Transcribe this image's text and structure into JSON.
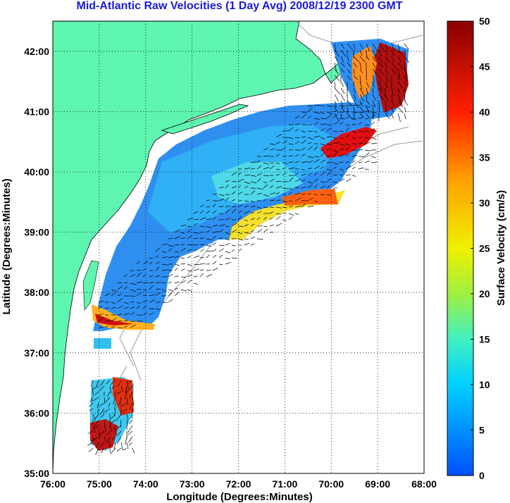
{
  "title": "Mid-Atlantic Raw Velocities (1 Day Avg) 2008/12/19 2300 GMT",
  "x_axis": {
    "label": "Longitude (Degrees:Minutes)",
    "ticks": [
      "76:00",
      "75:00",
      "74:00",
      "73:00",
      "72:00",
      "71:00",
      "70:00",
      "69:00",
      "68:00"
    ]
  },
  "y_axis": {
    "label": "Latitude (Degrees:Minutes)",
    "ticks": [
      "42:00",
      "41:00",
      "40:00",
      "39:00",
      "38:00",
      "37:00",
      "36:00",
      "35:00"
    ]
  },
  "colorbar": {
    "label": "Surface Velocity (cm/s)",
    "ticks": [
      "50",
      "45",
      "40",
      "35",
      "30",
      "25",
      "20",
      "15",
      "10",
      "5",
      "0"
    ],
    "min": 0,
    "max": 50
  },
  "colors": {
    "land": "#5ef5b0",
    "title": "#1a1ad6",
    "coast": "#000000",
    "bathymetry": "#9a9a9a"
  },
  "chart_data": {
    "type": "heatmap",
    "title": "Mid-Atlantic Raw Velocities (1 Day Avg) 2008/12/19 2300 GMT",
    "xlabel": "Longitude (Degrees:Minutes)",
    "ylabel": "Latitude (Degrees:Minutes)",
    "xlim": [
      -76,
      -68
    ],
    "ylim": [
      35,
      42.5
    ],
    "grid": true,
    "colorbar_range": [
      0,
      50
    ],
    "colorbar_label": "Surface Velocity (cm/s)"
  }
}
